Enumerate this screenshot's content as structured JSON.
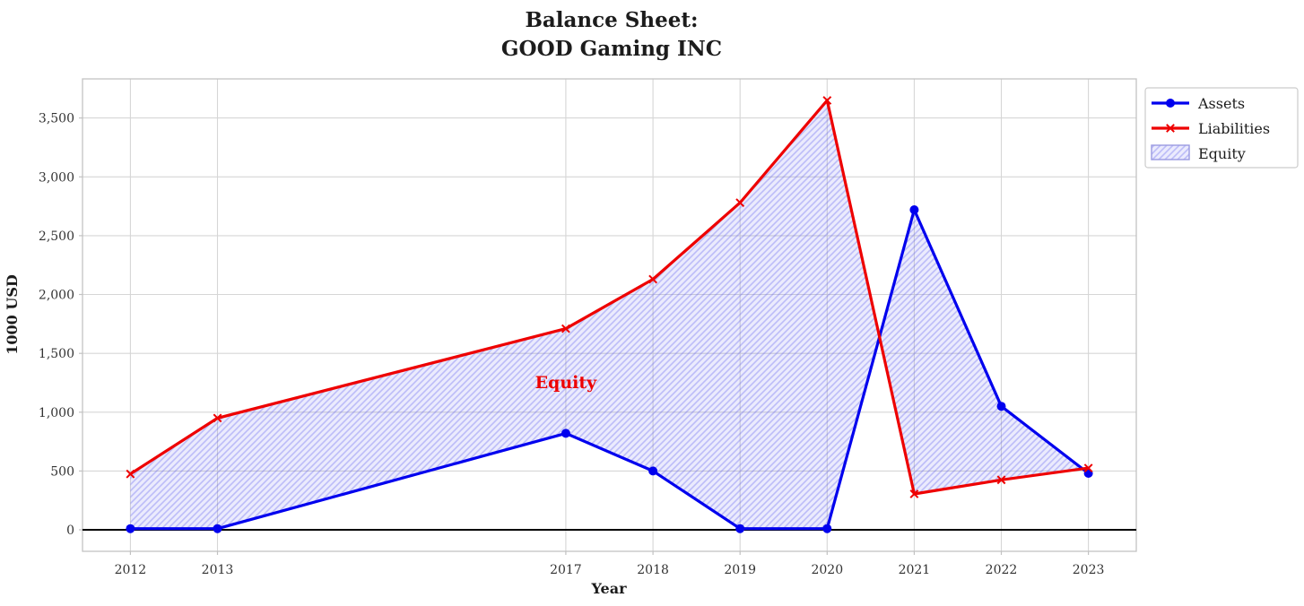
{
  "title": {
    "line1": "Balance Sheet:",
    "line2": "GOOD Gaming INC"
  },
  "chart_data": {
    "type": "line",
    "x": [
      2012,
      2013,
      2017,
      2018,
      2019,
      2020,
      2021,
      2022,
      2023
    ],
    "series": [
      {
        "name": "Assets",
        "color": "#0000ee",
        "marker": "circle",
        "values": [
          10,
          10,
          820,
          500,
          10,
          10,
          2720,
          1050,
          480
        ]
      },
      {
        "name": "Liabilities",
        "color": "#ee0000",
        "marker": "x",
        "values": [
          475,
          950,
          1710,
          2130,
          2780,
          3650,
          305,
          425,
          525
        ]
      }
    ],
    "fill_between": {
      "label": "Equity",
      "between": [
        "Assets",
        "Liabilities"
      ],
      "fill_color": "rgba(55,55,235,0.10)",
      "hatch_color": "rgba(80,80,235,0.30)",
      "hatch": "//",
      "edge_color": "#9a9ae0"
    },
    "annotation": {
      "text": "Equity",
      "x": 2017,
      "y": 1257,
      "color": "#ee0000"
    },
    "xlabel": "Year",
    "ylabel": "1000 USD",
    "xlim": [
      2011.45,
      2023.55
    ],
    "ylim": [
      -182.5,
      3832.5
    ],
    "xticks": [
      2012,
      2013,
      2017,
      2018,
      2019,
      2020,
      2021,
      2022,
      2023
    ],
    "xtick_labels": [
      "2012",
      "2013",
      "2017",
      "2018",
      "2019",
      "2020",
      "2021",
      "2022",
      "2023"
    ],
    "yticks": [
      0,
      500,
      1000,
      1500,
      2000,
      2500,
      3000,
      3500
    ],
    "ytick_labels": [
      "0",
      "500",
      "1,000",
      "1,500",
      "2,000",
      "2,500",
      "3,000",
      "3,500"
    ],
    "grid": true,
    "zero_line": true,
    "legend": {
      "position": "upper-right-outside",
      "items": [
        {
          "label": "Assets"
        },
        {
          "label": "Liabilities"
        },
        {
          "label": "Equity"
        }
      ]
    },
    "style": {
      "grid_color": "#d6d6d6",
      "spine_color": "#c2c2c2",
      "tick_label_color": "#333333",
      "text_color": "#1c1c1c",
      "zero_line_color": "#000000",
      "legend_border_color": "#cccccc",
      "legend_bg_color": "#ffffff"
    }
  }
}
